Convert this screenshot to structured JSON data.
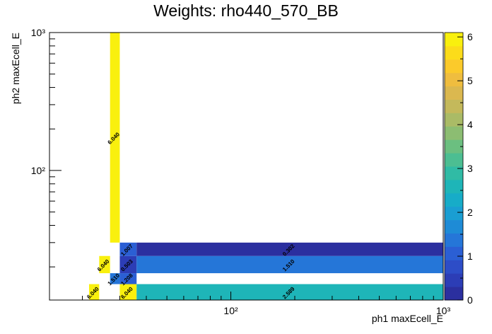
{
  "chart_data": {
    "type": "heatmap",
    "title": "Weights: rho440_570_BB",
    "xlabel": "ph1 maxEcell_E",
    "ylabel": "ph2 maxEcell_E",
    "xscale": "log",
    "yscale": "log",
    "xlim": [
      14,
      1000
    ],
    "ylim": [
      11.5,
      1000
    ],
    "zlim": [
      0,
      6.1
    ],
    "palette": [
      "#2b2f9f",
      "#2c3db6",
      "#2d4dc7",
      "#2b5fd4",
      "#2576d8",
      "#1e8bd6",
      "#1a9ed2",
      "#17acc8",
      "#1eb5b8",
      "#30bba5",
      "#4cbe92",
      "#6bbf80",
      "#8cbd72",
      "#aabb66",
      "#c4b95b",
      "#dbb84f",
      "#efbd3f",
      "#fbca2b",
      "#fcdc1a",
      "#f9f00e"
    ],
    "xticks": [
      "10²",
      "10³"
    ],
    "yticks": [
      "10²",
      "10³"
    ],
    "ztick_labels": [
      "0",
      "1",
      "2",
      "3",
      "4",
      "5",
      "6"
    ],
    "cells": [
      {
        "x": [
          21.5,
          24
        ],
        "y": [
          11.5,
          15
        ],
        "value": 6.04,
        "label": "6.040"
      },
      {
        "x": [
          30,
          36
        ],
        "y": [
          11.5,
          15
        ],
        "value": 6.04,
        "label": "6.040"
      },
      {
        "x": [
          36,
          1000
        ],
        "y": [
          11.5,
          15
        ],
        "value": 2.589,
        "label": "2.589"
      },
      {
        "x": [
          27,
          30
        ],
        "y": [
          15,
          18
        ],
        "value": 1.51,
        "label": "1.510"
      },
      {
        "x": [
          30,
          36
        ],
        "y": [
          15,
          18
        ],
        "value": 1.208,
        "label": "1.208"
      },
      {
        "x": [
          24,
          27
        ],
        "y": [
          18,
          24
        ],
        "value": 6.04,
        "label": "6.040"
      },
      {
        "x": [
          30,
          36
        ],
        "y": [
          18,
          24
        ],
        "value": 0.503,
        "label": "0.503"
      },
      {
        "x": [
          36,
          1000
        ],
        "y": [
          18,
          24
        ],
        "value": 1.51,
        "label": "1.510"
      },
      {
        "x": [
          30,
          36
        ],
        "y": [
          24,
          30
        ],
        "value": 1.007,
        "label": "1.007"
      },
      {
        "x": [
          36,
          1000
        ],
        "y": [
          24,
          30
        ],
        "value": 0.302,
        "label": "0.302"
      },
      {
        "x": [
          27,
          30
        ],
        "y": [
          30,
          1000
        ],
        "value": 6.04,
        "label": "6.040"
      }
    ]
  }
}
